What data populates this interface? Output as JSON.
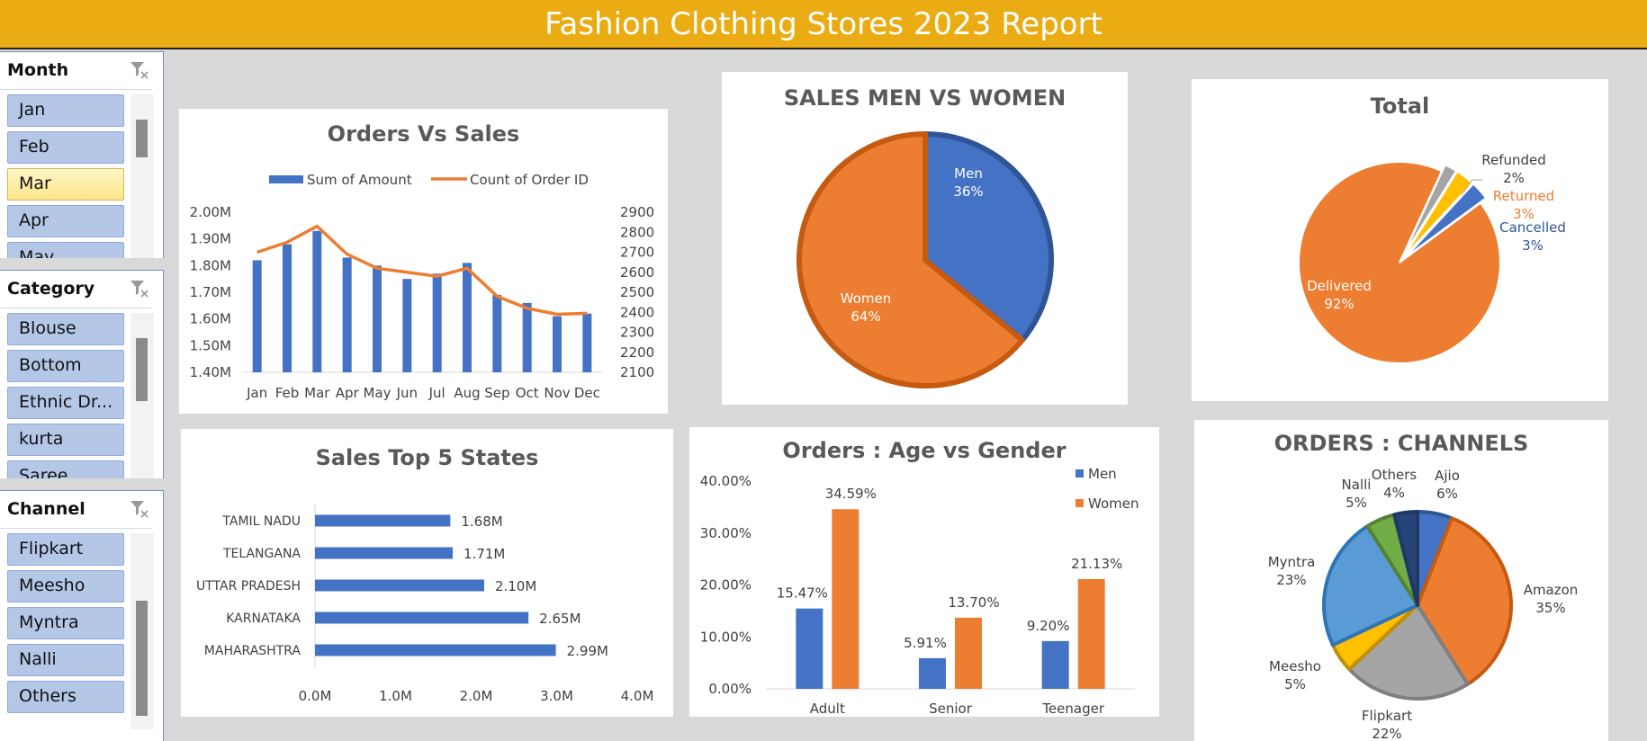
{
  "header": {
    "title": "Fashion Clothing Stores 2023 Report"
  },
  "slicers": {
    "month": {
      "title": "Month",
      "items": [
        "Jan",
        "Feb",
        "Mar",
        "Apr",
        "May"
      ],
      "selected": "Mar"
    },
    "category": {
      "title": "Category",
      "items": [
        "Blouse",
        "Bottom",
        "Ethnic Dr...",
        "kurta",
        "Saree"
      ]
    },
    "channel": {
      "title": "Channel",
      "items": [
        "Flipkart",
        "Meesho",
        "Myntra",
        "Nalli",
        "Others"
      ]
    }
  },
  "colors": {
    "blue": "#4472c4",
    "orange": "#ed7d31",
    "gray": "#a5a5a5",
    "yellow": "#ffc000",
    "lightblue": "#5b9bd5",
    "green": "#70ad47",
    "navy": "#264478",
    "header": "#eaab13"
  },
  "chart_data": [
    {
      "id": "orders-vs-sales",
      "type": "bar",
      "title": "Orders Vs Sales",
      "categories": [
        "Jan",
        "Feb",
        "Mar",
        "Apr",
        "May",
        "Jun",
        "Jul",
        "Aug",
        "Sep",
        "Oct",
        "Nov",
        "Dec"
      ],
      "series": [
        {
          "name": "Sum of Amount",
          "type": "bar",
          "axis": "left",
          "values": [
            1.82,
            1.88,
            1.93,
            1.83,
            1.8,
            1.75,
            1.77,
            1.81,
            1.69,
            1.66,
            1.61,
            1.62
          ]
        },
        {
          "name": "Count of Order ID",
          "type": "line",
          "axis": "right",
          "values": [
            2700,
            2750,
            2830,
            2690,
            2620,
            2600,
            2580,
            2620,
            2480,
            2420,
            2390,
            2395
          ]
        }
      ],
      "ylim": [
        1.4,
        2.0
      ],
      "yticks": [
        "1.40M",
        "1.50M",
        "1.60M",
        "1.70M",
        "1.80M",
        "1.90M",
        "2.00M"
      ],
      "y2lim": [
        2100,
        2900
      ],
      "y2ticks": [
        "2100",
        "2200",
        "2300",
        "2400",
        "2500",
        "2600",
        "2700",
        "2800",
        "2900"
      ],
      "legend": "top"
    },
    {
      "id": "sales-men-women",
      "type": "pie",
      "title": "SALES MEN VS WOMEN",
      "slices": [
        {
          "label": "Men",
          "value": 36,
          "text": "36%"
        },
        {
          "label": "Women",
          "value": 64,
          "text": "64%"
        }
      ]
    },
    {
      "id": "total-status",
      "type": "pie",
      "title": "Total",
      "slices": [
        {
          "label": "Cancelled",
          "value": 3,
          "text": "3%"
        },
        {
          "label": "Delivered",
          "value": 92,
          "text": "92%"
        },
        {
          "label": "Refunded",
          "value": 2,
          "text": "2%"
        },
        {
          "label": "Returned",
          "value": 3,
          "text": "3%"
        }
      ]
    },
    {
      "id": "top-states",
      "type": "bar",
      "orientation": "horizontal",
      "title": "Sales Top 5 States",
      "categories": [
        "TAMIL NADU",
        "TELANGANA",
        "UTTAR PRADESH",
        "KARNATAKA",
        "MAHARASHTRA"
      ],
      "values": [
        1.68,
        1.71,
        2.1,
        2.65,
        2.99
      ],
      "labels": [
        "1.68M",
        "1.71M",
        "2.10M",
        "2.65M",
        "2.99M"
      ],
      "xlim": [
        0,
        4
      ],
      "xticks": [
        "0.0M",
        "1.0M",
        "2.0M",
        "3.0M",
        "4.0M"
      ]
    },
    {
      "id": "age-vs-gender",
      "type": "bar",
      "title": "Orders : Age vs Gender",
      "categories": [
        "Adult",
        "Senior",
        "Teenager"
      ],
      "series": [
        {
          "name": "Men",
          "values": [
            15.47,
            5.91,
            9.2
          ],
          "labels": [
            "15.47%",
            "5.91%",
            "9.20%"
          ]
        },
        {
          "name": "Women",
          "values": [
            34.59,
            13.7,
            21.13
          ],
          "labels": [
            "34.59%",
            "13.70%",
            "21.13%"
          ]
        }
      ],
      "ylim": [
        0,
        40
      ],
      "yticks": [
        "0.00%",
        "10.00%",
        "20.00%",
        "30.00%",
        "40.00%"
      ],
      "legend": "top-right"
    },
    {
      "id": "orders-channels",
      "type": "pie",
      "title": "ORDERS : CHANNELS",
      "slices": [
        {
          "label": "Ajio",
          "value": 6,
          "text": "6%"
        },
        {
          "label": "Amazon",
          "value": 35,
          "text": "35%"
        },
        {
          "label": "Flipkart",
          "value": 22,
          "text": "22%"
        },
        {
          "label": "Meesho",
          "value": 5,
          "text": "5%"
        },
        {
          "label": "Myntra",
          "value": 23,
          "text": "23%"
        },
        {
          "label": "Nalli",
          "value": 5,
          "text": "5%"
        },
        {
          "label": "Others",
          "value": 4,
          "text": "4%"
        }
      ]
    }
  ]
}
